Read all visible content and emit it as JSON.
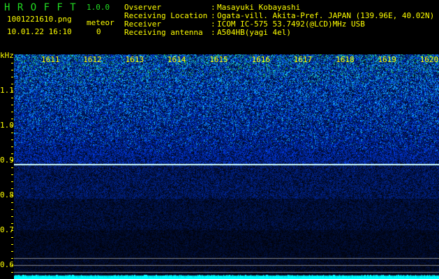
{
  "app": {
    "title": "H R O F F T",
    "version": "1.0.0"
  },
  "file": {
    "name": "1001221610.png",
    "datetime": "10.01.22 16:10"
  },
  "meteor": {
    "label": "meteor",
    "count": "0"
  },
  "info": [
    {
      "label": "Ovserver",
      "value": "Masayuki Kobayashi"
    },
    {
      "label": "Receiving Location",
      "value": "Ogata-vill. Akita-Pref. JAPAN (139.96E, 40.02N)"
    },
    {
      "label": "Receiver",
      "value": "ICOM IC-575 53.7492(@LCD)MHz USB"
    },
    {
      "label": "Receiving antenna",
      "value": "A504HB(yagi 4el)"
    }
  ],
  "spectrogram": {
    "y_unit": "kHz",
    "y_ticks": [
      "1.1",
      "1.0",
      "0.9",
      "0.8",
      "0.7",
      "0.6"
    ],
    "time_ticks": [
      "1611",
      "1612",
      "1613",
      "1614",
      "1615",
      "1616",
      "1617",
      "1618",
      "1619",
      "1620"
    ],
    "carrier_khz": 0.89,
    "colors": {
      "text": "#ffff00",
      "title": "#22dd22",
      "carrier": "#ccffff",
      "noise_high": "#1030ff",
      "noise_peak": "#20c040",
      "baseline": "#00ffff",
      "gridline": "#888888"
    }
  }
}
